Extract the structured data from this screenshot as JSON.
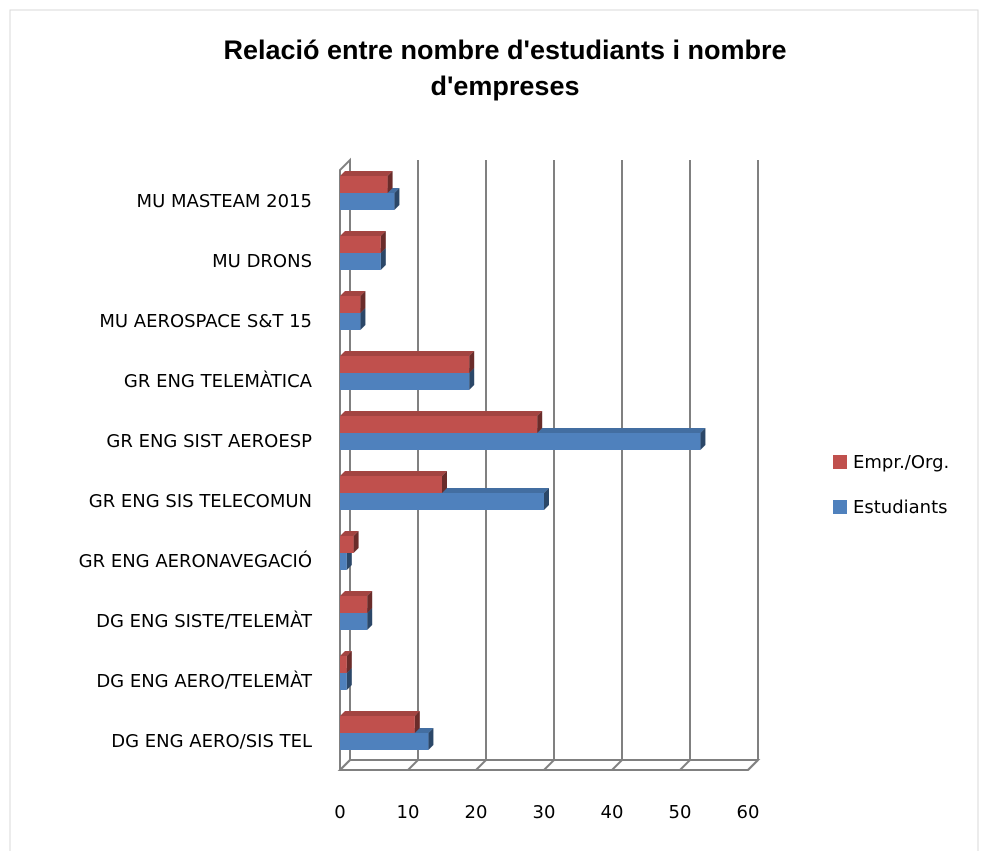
{
  "chart_data": {
    "type": "bar",
    "orientation": "horizontal",
    "title": "Relació entre nombre d'estudiants i nombre d'empreses",
    "categories": [
      "DG ENG AERO/SIS TEL",
      "DG ENG AERO/TELEMÀT",
      "DG ENG SISTE/TELEMÀT",
      "GR ENG AERONAVEGACIÓ",
      "GR ENG SIS TELECOMUN",
      "GR ENG SIST AEROESP",
      "GR ENG TELEMÀTICA",
      "MU AEROSPACE S&T 15",
      "MU DRONS",
      "MU MASTEAM 2015"
    ],
    "series": [
      {
        "name": "Estudiants",
        "color": "#4f81bd",
        "values": [
          13,
          1,
          4,
          1,
          30,
          53,
          19,
          3,
          6,
          8
        ]
      },
      {
        "name": "Empr./Org.",
        "color": "#c0504d",
        "values": [
          11,
          1,
          4,
          2,
          15,
          29,
          19,
          3,
          6,
          7
        ]
      }
    ],
    "xlim": [
      0,
      60
    ],
    "xticks": [
      0,
      10,
      20,
      30,
      40,
      50,
      60
    ],
    "grid": true,
    "legend": "right"
  }
}
